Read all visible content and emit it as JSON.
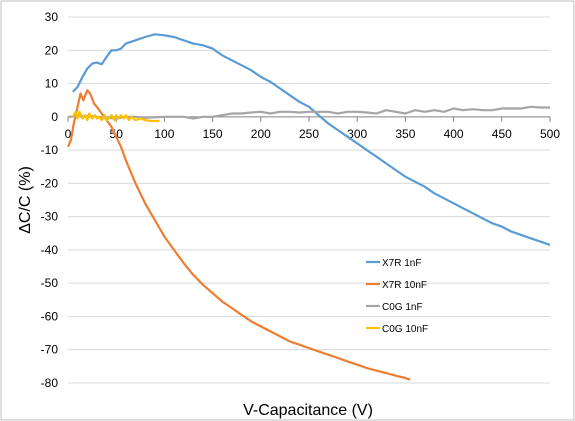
{
  "chart_data": {
    "type": "line",
    "xlabel": "V-Capacitance (V)",
    "ylabel": "ΔC/C (%)",
    "xlim": [
      0,
      500
    ],
    "ylim": [
      -80,
      30
    ],
    "x_ticks": [
      0,
      50,
      100,
      150,
      200,
      250,
      300,
      350,
      400,
      450,
      500
    ],
    "y_ticks": [
      30,
      20,
      10,
      0,
      -10,
      -20,
      -30,
      -40,
      -50,
      -60,
      -70,
      -80
    ],
    "grid": "horizontal",
    "legend_position": "right-lower",
    "series": [
      {
        "name": "X7R 1nF",
        "color": "#5B9BD5",
        "points": [
          [
            5,
            7.5
          ],
          [
            10,
            9
          ],
          [
            15,
            12
          ],
          [
            20,
            14.5
          ],
          [
            25,
            16
          ],
          [
            30,
            16.3
          ],
          [
            35,
            15.8
          ],
          [
            40,
            18
          ],
          [
            45,
            20
          ],
          [
            50,
            20
          ],
          [
            55,
            20.5
          ],
          [
            60,
            22
          ],
          [
            70,
            23
          ],
          [
            80,
            24
          ],
          [
            90,
            24.8
          ],
          [
            100,
            24.5
          ],
          [
            110,
            24
          ],
          [
            120,
            23
          ],
          [
            130,
            22
          ],
          [
            140,
            21.5
          ],
          [
            150,
            20.5
          ],
          [
            160,
            18.5
          ],
          [
            170,
            17
          ],
          [
            180,
            15.5
          ],
          [
            190,
            14
          ],
          [
            200,
            12
          ],
          [
            210,
            10.5
          ],
          [
            220,
            8.5
          ],
          [
            230,
            6.5
          ],
          [
            240,
            4.5
          ],
          [
            250,
            3
          ],
          [
            260,
            0.5
          ],
          [
            270,
            -2
          ],
          [
            280,
            -4
          ],
          [
            290,
            -6
          ],
          [
            300,
            -8
          ],
          [
            310,
            -10
          ],
          [
            320,
            -12
          ],
          [
            330,
            -14
          ],
          [
            340,
            -16
          ],
          [
            350,
            -18
          ],
          [
            360,
            -19.5
          ],
          [
            370,
            -21
          ],
          [
            380,
            -23
          ],
          [
            390,
            -24.5
          ],
          [
            400,
            -26
          ],
          [
            410,
            -27.5
          ],
          [
            420,
            -29
          ],
          [
            430,
            -30.5
          ],
          [
            440,
            -32
          ],
          [
            450,
            -33
          ],
          [
            460,
            -34.5
          ],
          [
            470,
            -35.5
          ],
          [
            480,
            -36.5
          ],
          [
            490,
            -37.5
          ],
          [
            500,
            -38.5
          ]
        ]
      },
      {
        "name": "X7R 10nF",
        "color": "#ED7D31",
        "points": [
          [
            0,
            -9
          ],
          [
            3,
            -7
          ],
          [
            6,
            -2
          ],
          [
            10,
            3
          ],
          [
            13,
            7
          ],
          [
            16,
            5
          ],
          [
            20,
            8
          ],
          [
            23,
            7
          ],
          [
            27,
            4
          ],
          [
            30,
            3
          ],
          [
            35,
            1
          ],
          [
            40,
            -1
          ],
          [
            45,
            -3
          ],
          [
            50,
            -6
          ],
          [
            55,
            -9
          ],
          [
            60,
            -13
          ],
          [
            70,
            -20
          ],
          [
            80,
            -26
          ],
          [
            90,
            -31
          ],
          [
            100,
            -36
          ],
          [
            110,
            -40
          ],
          [
            120,
            -44
          ],
          [
            130,
            -47.5
          ],
          [
            140,
            -50.5
          ],
          [
            150,
            -53
          ],
          [
            160,
            -55.5
          ],
          [
            170,
            -57.5
          ],
          [
            180,
            -59.5
          ],
          [
            190,
            -61.5
          ],
          [
            200,
            -63
          ],
          [
            210,
            -64.5
          ],
          [
            220,
            -66
          ],
          [
            230,
            -67.5
          ],
          [
            240,
            -68.5
          ],
          [
            250,
            -69.5
          ],
          [
            260,
            -70.5
          ],
          [
            270,
            -71.5
          ],
          [
            280,
            -72.5
          ],
          [
            290,
            -73.5
          ],
          [
            300,
            -74.5
          ],
          [
            310,
            -75.5
          ],
          [
            320,
            -76.3
          ],
          [
            330,
            -77
          ],
          [
            340,
            -77.8
          ],
          [
            350,
            -78.5
          ],
          [
            355,
            -79
          ]
        ]
      },
      {
        "name": "C0G 1nF",
        "color": "#A5A5A5",
        "points": [
          [
            0,
            0
          ],
          [
            20,
            0.3
          ],
          [
            40,
            -0.3
          ],
          [
            50,
            -0.5
          ],
          [
            60,
            0
          ],
          [
            70,
            0
          ],
          [
            80,
            -0.3
          ],
          [
            100,
            0
          ],
          [
            120,
            0
          ],
          [
            130,
            -0.5
          ],
          [
            140,
            0
          ],
          [
            150,
            0
          ],
          [
            160,
            0.5
          ],
          [
            170,
            1
          ],
          [
            180,
            1
          ],
          [
            190,
            1.3
          ],
          [
            200,
            1.5
          ],
          [
            210,
            1
          ],
          [
            220,
            1.5
          ],
          [
            230,
            1.5
          ],
          [
            240,
            1.3
          ],
          [
            250,
            1.5
          ],
          [
            260,
            1.5
          ],
          [
            270,
            1.5
          ],
          [
            280,
            1
          ],
          [
            290,
            1.5
          ],
          [
            300,
            1.5
          ],
          [
            310,
            1.3
          ],
          [
            320,
            1
          ],
          [
            330,
            2
          ],
          [
            340,
            1.5
          ],
          [
            350,
            1
          ],
          [
            360,
            2
          ],
          [
            370,
            1.5
          ],
          [
            380,
            2
          ],
          [
            390,
            1.5
          ],
          [
            400,
            2.5
          ],
          [
            410,
            2
          ],
          [
            420,
            2.3
          ],
          [
            430,
            2
          ],
          [
            440,
            2
          ],
          [
            450,
            2.5
          ],
          [
            460,
            2.5
          ],
          [
            470,
            2.5
          ],
          [
            480,
            3
          ],
          [
            490,
            2.8
          ],
          [
            500,
            2.8
          ]
        ]
      },
      {
        "name": "C0G 10nF",
        "color": "#FFC000",
        "points": [
          [
            5,
            0
          ],
          [
            8,
            1.5
          ],
          [
            10,
            -0.5
          ],
          [
            12,
            1.5
          ],
          [
            15,
            -0.5
          ],
          [
            18,
            0.5
          ],
          [
            20,
            -1
          ],
          [
            22,
            1
          ],
          [
            25,
            -0.5
          ],
          [
            28,
            0.5
          ],
          [
            30,
            -0.5
          ],
          [
            32,
            0
          ],
          [
            35,
            -1
          ],
          [
            38,
            0.5
          ],
          [
            40,
            -1
          ],
          [
            42,
            -0.5
          ],
          [
            45,
            0.5
          ],
          [
            48,
            -1
          ],
          [
            50,
            0.5
          ],
          [
            52,
            -0.5
          ],
          [
            55,
            0.5
          ],
          [
            58,
            -0.5
          ],
          [
            60,
            0.5
          ],
          [
            63,
            -1
          ],
          [
            66,
            0
          ],
          [
            70,
            -1
          ],
          [
            75,
            -0.5
          ],
          [
            80,
            -1
          ],
          [
            85,
            -1.2
          ],
          [
            90,
            -1.3
          ],
          [
            95,
            -1.2
          ]
        ]
      }
    ]
  }
}
